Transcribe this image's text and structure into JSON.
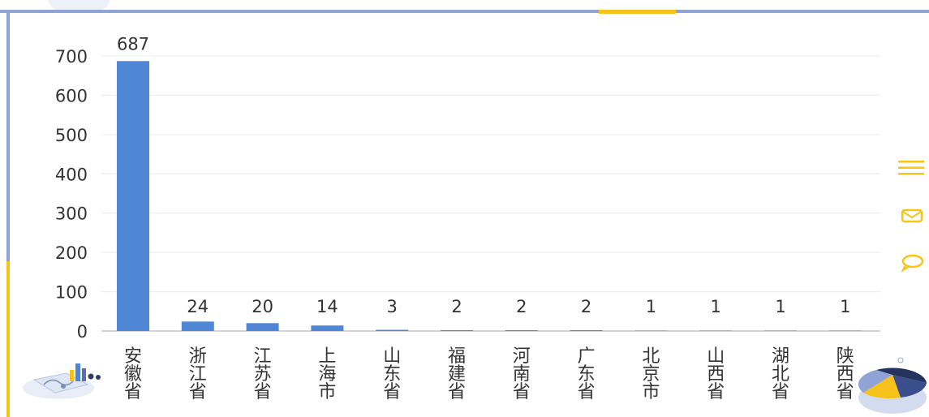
{
  "chart_data": {
    "type": "bar",
    "title": "",
    "xlabel": "",
    "ylabel": "",
    "categories": [
      "安徽省",
      "浙江省",
      "江苏省",
      "上海市",
      "山东省",
      "福建省",
      "河南省",
      "广东省",
      "北京市",
      "山西省",
      "湖北省",
      "陕西省"
    ],
    "values": [
      687,
      24,
      20,
      14,
      3,
      2,
      2,
      2,
      1,
      1,
      1,
      1
    ],
    "ylim": [
      0,
      700
    ],
    "yticks": [
      0,
      100,
      200,
      300,
      400,
      500,
      600,
      700
    ],
    "grid": true,
    "legend": "none",
    "bar_color": "#4f87d6"
  },
  "side_icons": [
    "menu-icon",
    "mail-icon",
    "comment-icon"
  ],
  "colors": {
    "frame_blue": "#8fa3d6",
    "frame_yellow": "#f7c21c",
    "icon_yellow": "#f5c518",
    "bar": "#4f87d6"
  }
}
